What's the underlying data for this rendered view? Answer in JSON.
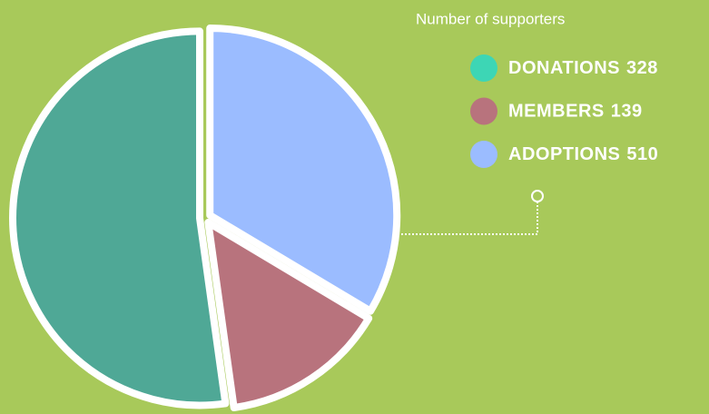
{
  "chart_data": {
    "type": "pie",
    "title": "Number of supporters",
    "categories": [
      "DONATIONS",
      "MEMBERS",
      "ADOPTIONS"
    ],
    "values": [
      328,
      139,
      510
    ],
    "colors": [
      "#3dd6b5",
      "#b8737d",
      "#9bbcff"
    ],
    "slice_colors": [
      "#9bbcff",
      "#b8737d",
      "#4fa896"
    ]
  }
}
